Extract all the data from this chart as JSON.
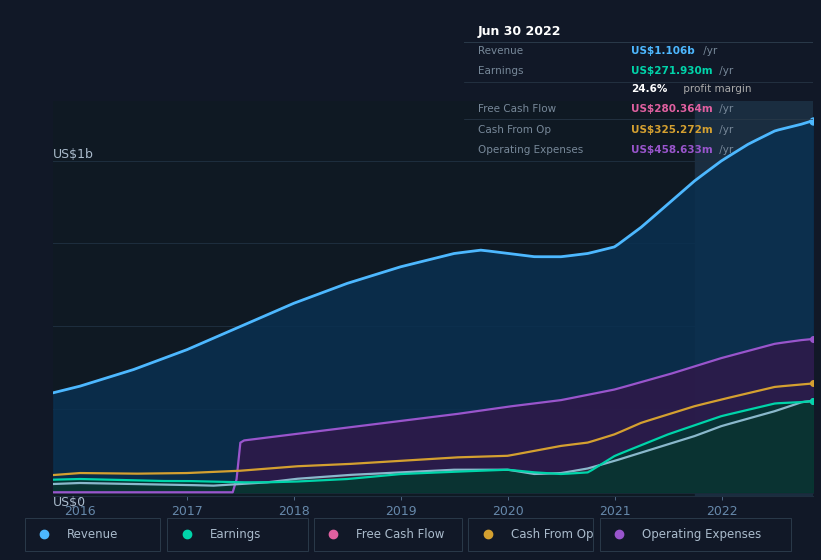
{
  "bg_color": "#111827",
  "chart_bg": "#0f1923",
  "ylabel_text": "US$1b",
  "y0_text": "US$0",
  "tooltip_title": "Jun 30 2022",
  "tooltip_rows": [
    {
      "label": "Revenue",
      "value": "US$1.106b",
      "suffix": " /yr",
      "color": "#4db8ff"
    },
    {
      "label": "Earnings",
      "value": "US$271.930m",
      "suffix": " /yr",
      "color": "#00d4aa"
    },
    {
      "label": "",
      "value": "24.6%",
      "suffix": " profit margin",
      "color": "#ffffff",
      "is_margin": true
    },
    {
      "label": "Free Cash Flow",
      "value": "US$280.364m",
      "suffix": " /yr",
      "color": "#e060a0"
    },
    {
      "label": "Cash From Op",
      "value": "US$325.272m",
      "suffix": " /yr",
      "color": "#d4a030"
    },
    {
      "label": "Operating Expenses",
      "value": "US$458.633m",
      "suffix": " /yr",
      "color": "#9955cc"
    }
  ],
  "legend_items": [
    {
      "label": "Revenue",
      "color": "#4db8ff"
    },
    {
      "label": "Earnings",
      "color": "#00d4aa"
    },
    {
      "label": "Free Cash Flow",
      "color": "#e060a0"
    },
    {
      "label": "Cash From Op",
      "color": "#d4a030"
    },
    {
      "label": "Operating Expenses",
      "color": "#9955cc"
    }
  ],
  "revenue_color": "#4db8ff",
  "earnings_color": "#00d4aa",
  "free_cash_flow_color": "#e060a0",
  "cash_from_op_color": "#d4a030",
  "operating_expenses_color": "#9955cc",
  "highlight_color": "#1a2d40",
  "grid_color": "#1e2e3e",
  "tick_color": "#6688aa"
}
